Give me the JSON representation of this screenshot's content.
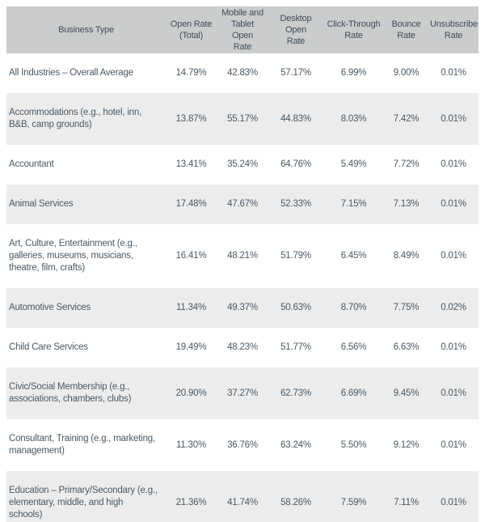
{
  "colors": {
    "header_background": "#cbcccc",
    "alternate_row_background": "#ececec",
    "row_background": "#ffffff",
    "header_text": "#3f4d59",
    "body_text": "#4a5863"
  },
  "table": {
    "columns": [
      {
        "key": "business-type",
        "label": "Business Type"
      },
      {
        "key": "open-rate-total",
        "label": "Open Rate\n(Total)"
      },
      {
        "key": "mobile-tablet-open-rate",
        "label": "Mobile and\nTablet\nOpen\nRate"
      },
      {
        "key": "desktop-open-rate",
        "label": "Desktop Open\nRate"
      },
      {
        "key": "click-through-rate",
        "label": "Click-Through\nRate"
      },
      {
        "key": "bounce-rate",
        "label": "Bounce\nRate"
      },
      {
        "key": "unsubscribe-rate",
        "label": "Unsubscribe\nRate"
      }
    ],
    "rows": [
      [
        "All Industries – Overall Average",
        "14.79%",
        "42.83%",
        "57.17%",
        "6.99%",
        "9.00%",
        "0.01%"
      ],
      [
        "Accommodations (e.g., hotel, inn, B&B, camp grounds)",
        "13.87%",
        "55.17%",
        "44.83%",
        "8.03%",
        "7.42%",
        "0.01%"
      ],
      [
        "Accountant",
        "13.41%",
        "35.24%",
        "64.76%",
        "5.49%",
        "7.72%",
        "0.01%"
      ],
      [
        "Animal Services",
        "17.48%",
        "47.67%",
        "52.33%",
        "7.15%",
        "7.13%",
        "0.01%"
      ],
      [
        "Art, Culture, Entertainment (e.g., galleries, museums, musicians, theatre, film, crafts)",
        "16.41%",
        "48.21%",
        "51.79%",
        "6.45%",
        "8.49%",
        "0.01%"
      ],
      [
        "Automotive Services",
        "11.34%",
        "49.37%",
        "50.63%",
        "8.70%",
        "7.75%",
        "0.02%"
      ],
      [
        "Child Care Services",
        "19.49%",
        "48.23%",
        "51.77%",
        "6.56%",
        "6.63%",
        "0.01%"
      ],
      [
        "Civic/Social Membership (e.g., associations, chambers, clubs)",
        "20.90%",
        "37.27%",
        "62.73%",
        "6.69%",
        "9.45%",
        "0.01%"
      ],
      [
        "Consultant, Training (e.g., marketing, management)",
        "11.30%",
        "36.76%",
        "63.24%",
        "5.50%",
        "9.12%",
        "0.01%"
      ],
      [
        "Education – Primary/Secondary (e.g., elementary, middle, and high schools)",
        "21.36%",
        "41.74%",
        "58.26%",
        "7.59%",
        "7.11%",
        "0.01%"
      ]
    ]
  }
}
